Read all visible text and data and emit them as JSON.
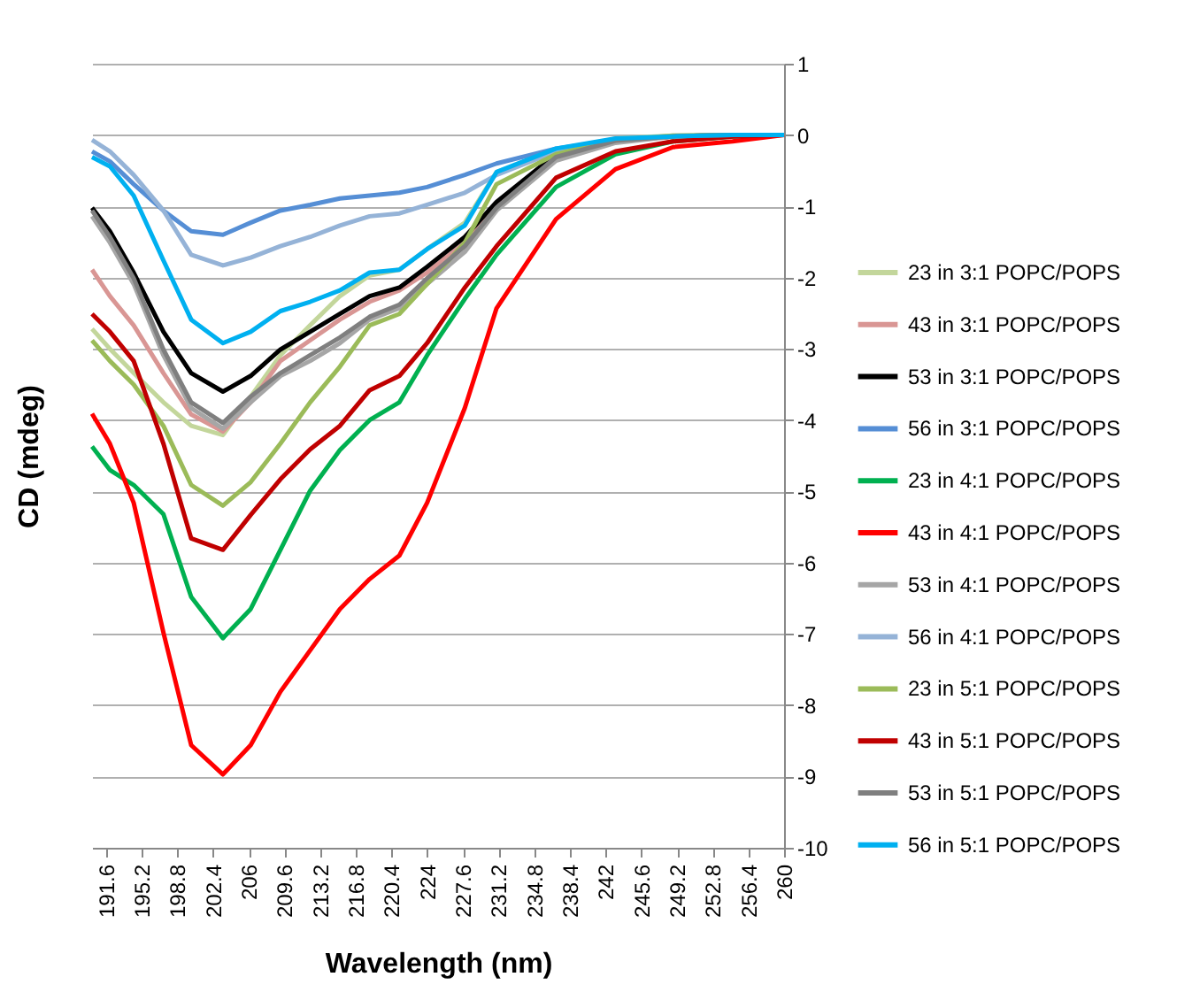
{
  "chart_data": {
    "type": "line",
    "xlabel": "Wavelength (nm)",
    "ylabel": "CD (mdeg)",
    "x": [
      190.2,
      192,
      194.4,
      197.4,
      200.2,
      203.4,
      206.2,
      209.2,
      212.2,
      215.2,
      218.2,
      221.2,
      224,
      227.8,
      231,
      237,
      243,
      248.8,
      254.8,
      260
    ],
    "xlim": [
      190.2,
      260
    ],
    "xticks": [
      191.6,
      195.2,
      198.8,
      202.4,
      206,
      209.6,
      213.2,
      216.8,
      220.4,
      224,
      227.6,
      231.2,
      234.8,
      238.4,
      242,
      245.6,
      249.2,
      252.8,
      256.4,
      260
    ],
    "ylim": [
      -10,
      1
    ],
    "yticks": [
      -10,
      -9,
      -8,
      -7,
      -6,
      -5,
      -4,
      -3,
      -2,
      -1,
      0,
      1
    ],
    "grid": "y",
    "legend": "right",
    "marker": "none",
    "line_style": "solid",
    "series": [
      {
        "name": "23 in 3:1 POPC/POPS",
        "color": "#c3d69b",
        "values": [
          -2.72,
          -3.0,
          -3.34,
          -3.75,
          -4.08,
          -4.21,
          -3.67,
          -3.09,
          -2.67,
          -2.26,
          -1.97,
          -1.89,
          -1.6,
          -1.23,
          -0.52,
          -0.23,
          -0.05,
          -0.01,
          0,
          0
        ]
      },
      {
        "name": "43 in 3:1 POPC/POPS",
        "color": "#d99694",
        "values": [
          -1.89,
          -2.26,
          -2.67,
          -3.34,
          -3.92,
          -4.16,
          -3.75,
          -3.17,
          -2.88,
          -2.59,
          -2.34,
          -2.18,
          -1.93,
          -1.51,
          -0.98,
          -0.31,
          -0.07,
          -0.02,
          0,
          0
        ]
      },
      {
        "name": "53 in 3:1 POPC/POPS",
        "color": "#000000",
        "values": [
          -1.02,
          -1.35,
          -1.93,
          -2.76,
          -3.34,
          -3.6,
          -3.38,
          -3.01,
          -2.76,
          -2.51,
          -2.26,
          -2.14,
          -1.85,
          -1.43,
          -0.94,
          -0.27,
          -0.07,
          -0.02,
          0,
          0
        ]
      },
      {
        "name": "56 in 3:1 POPC/POPS",
        "color": "#558ed5",
        "values": [
          -0.23,
          -0.37,
          -0.69,
          -1.06,
          -1.35,
          -1.4,
          -1.23,
          -1.06,
          -0.98,
          -0.89,
          -0.85,
          -0.81,
          -0.73,
          -0.56,
          -0.4,
          -0.19,
          -0.07,
          -0.02,
          0,
          0
        ]
      },
      {
        "name": "23 in 4:1 POPC/POPS",
        "color": "#00b050",
        "values": [
          -4.37,
          -4.7,
          -4.91,
          -5.32,
          -6.48,
          -7.06,
          -6.65,
          -5.82,
          -4.99,
          -4.42,
          -4.0,
          -3.75,
          -3.09,
          -2.3,
          -1.68,
          -0.73,
          -0.27,
          -0.09,
          -0.02,
          0
        ]
      },
      {
        "name": "43 in 4:1 POPC/POPS",
        "color": "#ff0000",
        "values": [
          -3.91,
          -4.33,
          -5.16,
          -6.98,
          -8.56,
          -8.97,
          -8.56,
          -7.81,
          -7.23,
          -6.65,
          -6.23,
          -5.9,
          -5.16,
          -3.83,
          -2.43,
          -1.18,
          -0.48,
          -0.17,
          -0.09,
          0
        ]
      },
      {
        "name": "53 in 4:1 POPC/POPS",
        "color": "#a6a6a6",
        "values": [
          -1.14,
          -1.51,
          -2.09,
          -3.09,
          -3.83,
          -4.12,
          -3.75,
          -3.38,
          -3.17,
          -2.92,
          -2.59,
          -2.43,
          -2.09,
          -1.64,
          -1.06,
          -0.36,
          -0.11,
          -0.02,
          0,
          0
        ]
      },
      {
        "name": "56 in 4:1 POPC/POPS",
        "color": "#95b3d7",
        "values": [
          -0.07,
          -0.23,
          -0.56,
          -1.06,
          -1.68,
          -1.83,
          -1.72,
          -1.56,
          -1.43,
          -1.27,
          -1.14,
          -1.1,
          -0.98,
          -0.81,
          -0.56,
          -0.23,
          -0.07,
          -0.02,
          0,
          0
        ]
      },
      {
        "name": "23 in 5:1 POPC/POPS",
        "color": "#9bbb59",
        "values": [
          -2.88,
          -3.17,
          -3.5,
          -4.08,
          -4.91,
          -5.2,
          -4.87,
          -4.33,
          -3.75,
          -3.25,
          -2.67,
          -2.51,
          -2.09,
          -1.51,
          -0.69,
          -0.27,
          -0.07,
          -0.01,
          0,
          0
        ]
      },
      {
        "name": "43 in 5:1 POPC/POPS",
        "color": "#c00000",
        "values": [
          -2.51,
          -2.76,
          -3.17,
          -4.33,
          -5.66,
          -5.82,
          -5.33,
          -4.83,
          -4.41,
          -4.08,
          -3.58,
          -3.38,
          -2.92,
          -2.14,
          -1.56,
          -0.6,
          -0.23,
          -0.09,
          -0.02,
          0
        ]
      },
      {
        "name": "53 in 5:1 POPC/POPS",
        "color": "#7f7f7f",
        "values": [
          -1.06,
          -1.43,
          -2.01,
          -3.01,
          -3.75,
          -4.04,
          -3.67,
          -3.34,
          -3.09,
          -2.84,
          -2.55,
          -2.38,
          -2.01,
          -1.56,
          -1.02,
          -0.31,
          -0.08,
          -0.02,
          0,
          0
        ]
      },
      {
        "name": "56 in 5:1 POPC/POPS",
        "color": "#00b0f0",
        "values": [
          -0.31,
          -0.44,
          -0.85,
          -1.76,
          -2.59,
          -2.92,
          -2.76,
          -2.47,
          -2.34,
          -2.18,
          -1.93,
          -1.89,
          -1.6,
          -1.27,
          -0.52,
          -0.19,
          -0.05,
          -0.02,
          0,
          0
        ]
      }
    ]
  }
}
